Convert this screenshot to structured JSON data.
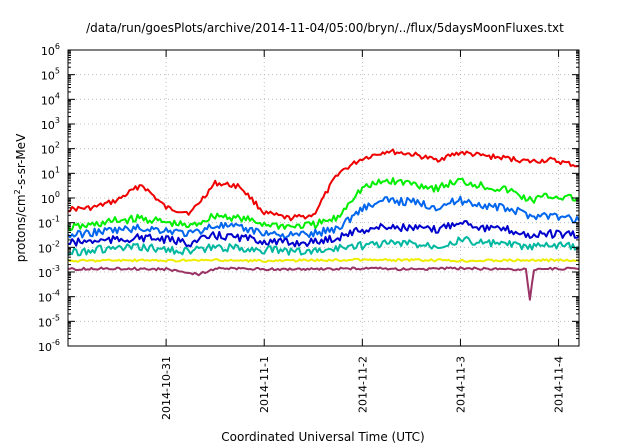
{
  "chart_data": {
    "type": "line",
    "title": "/data/run/goesPlots/archive/2014-11-04/05:00/bryn/../flux/5daysMoonFluxes.txt",
    "xlabel": "Coordinated Universal Time (UTC)",
    "ylabel": "protons/cm²-s-sr-MeV",
    "ylabel_parts": {
      "base": "protons/cm",
      "sup": "2",
      "rest": "-s-sr-MeV"
    },
    "xscale": "time",
    "yscale": "log",
    "xlim": [
      "2014-10-30T00:00",
      "2014-11-04T05:00"
    ],
    "ylim": [
      1e-06,
      1000000.0
    ],
    "grid": true,
    "legend": "none",
    "x_ticks": [
      "2014-10-31",
      "2014-11-1",
      "2014-11-2",
      "2014-11-3",
      "2014-11-4"
    ],
    "y_ticks": [
      {
        "base": "10",
        "exp": "-6"
      },
      {
        "base": "10",
        "exp": "-5"
      },
      {
        "base": "10",
        "exp": "-4"
      },
      {
        "base": "10",
        "exp": "-3"
      },
      {
        "base": "10",
        "exp": "-2"
      },
      {
        "base": "10",
        "exp": "-1"
      },
      {
        "base": "10",
        "exp": "0"
      },
      {
        "base": "10",
        "exp": "1"
      },
      {
        "base": "10",
        "exp": "2"
      },
      {
        "base": "10",
        "exp": "3"
      },
      {
        "base": "10",
        "exp": "4"
      },
      {
        "base": "10",
        "exp": "5"
      },
      {
        "base": "10",
        "exp": "6"
      }
    ],
    "series": [
      {
        "color": "#ee0000",
        "x": [
          "2014-10-30T00:00",
          "2014-10-30T06:00",
          "2014-10-30T12:00",
          "2014-10-30T18:00",
          "2014-10-31T00:00",
          "2014-10-31T06:00",
          "2014-10-31T12:00",
          "2014-10-31T18:00",
          "2014-11-01T00:00",
          "2014-11-01T06:00",
          "2014-11-01T12:00",
          "2014-11-01T18:00",
          "2014-11-01T21:00",
          "2014-11-02T00:00",
          "2014-11-02T06:00",
          "2014-11-02T12:00",
          "2014-11-02T18:00",
          "2014-11-03T00:00",
          "2014-11-03T06:00",
          "2014-11-03T12:00",
          "2014-11-03T17:00",
          "2014-11-03T22:00",
          "2014-11-04T05:00"
        ],
        "y": [
          0.35,
          0.4,
          0.8,
          3.5,
          0.4,
          0.25,
          4.0,
          3.0,
          0.25,
          0.15,
          0.2,
          10,
          20,
          40,
          80,
          60,
          35,
          70,
          50,
          40,
          30,
          35,
          20
        ]
      },
      {
        "color": "#00ee00",
        "x": [
          "2014-10-30T00:00",
          "2014-10-30T06:00",
          "2014-10-30T12:00",
          "2014-10-30T18:00",
          "2014-10-31T00:00",
          "2014-10-31T06:00",
          "2014-10-31T12:00",
          "2014-10-31T18:00",
          "2014-11-01T00:00",
          "2014-11-01T06:00",
          "2014-11-01T12:00",
          "2014-11-01T18:00",
          "2014-11-01T21:00",
          "2014-11-02T00:00",
          "2014-11-02T06:00",
          "2014-11-02T12:00",
          "2014-11-02T18:00",
          "2014-11-03T00:00",
          "2014-11-03T06:00",
          "2014-11-03T12:00",
          "2014-11-03T17:00",
          "2014-11-03T22:00",
          "2014-11-04T05:00"
        ],
        "y": [
          0.06,
          0.08,
          0.12,
          0.15,
          0.1,
          0.07,
          0.2,
          0.15,
          0.09,
          0.07,
          0.08,
          0.15,
          0.8,
          2.5,
          5,
          4,
          2.5,
          5,
          3,
          2,
          0.8,
          1.2,
          0.9
        ]
      },
      {
        "color": "#0066ee",
        "x": [
          "2014-10-30T00:00",
          "2014-10-30T06:00",
          "2014-10-30T12:00",
          "2014-10-30T18:00",
          "2014-10-31T00:00",
          "2014-10-31T06:00",
          "2014-10-31T12:00",
          "2014-10-31T18:00",
          "2014-11-01T00:00",
          "2014-11-01T06:00",
          "2014-11-01T12:00",
          "2014-11-01T18:00",
          "2014-11-01T21:00",
          "2014-11-02T00:00",
          "2014-11-02T06:00",
          "2014-11-02T12:00",
          "2014-11-02T18:00",
          "2014-11-03T00:00",
          "2014-11-03T06:00",
          "2014-11-03T12:00",
          "2014-11-03T17:00",
          "2014-11-03T22:00",
          "2014-11-04T05:00"
        ],
        "y": [
          0.03,
          0.04,
          0.05,
          0.06,
          0.05,
          0.035,
          0.08,
          0.06,
          0.04,
          0.03,
          0.035,
          0.06,
          0.15,
          0.4,
          0.8,
          0.7,
          0.45,
          0.8,
          0.5,
          0.35,
          0.2,
          0.2,
          0.12
        ]
      },
      {
        "color": "#0000cc",
        "x": [
          "2014-10-30T00:00",
          "2014-10-30T06:00",
          "2014-10-30T12:00",
          "2014-10-30T18:00",
          "2014-10-31T00:00",
          "2014-10-31T06:00",
          "2014-10-31T12:00",
          "2014-10-31T18:00",
          "2014-11-01T00:00",
          "2014-11-01T06:00",
          "2014-11-01T12:00",
          "2014-11-01T18:00",
          "2014-11-01T21:00",
          "2014-11-02T00:00",
          "2014-11-02T06:00",
          "2014-11-02T12:00",
          "2014-11-02T18:00",
          "2014-11-03T00:00",
          "2014-11-03T06:00",
          "2014-11-03T12:00",
          "2014-11-03T17:00",
          "2014-11-03T22:00",
          "2014-11-04T05:00"
        ],
        "y": [
          0.015,
          0.018,
          0.02,
          0.025,
          0.02,
          0.015,
          0.03,
          0.025,
          0.018,
          0.015,
          0.016,
          0.025,
          0.04,
          0.05,
          0.07,
          0.06,
          0.05,
          0.12,
          0.06,
          0.05,
          0.03,
          0.035,
          0.03
        ]
      },
      {
        "color": "#00b8a0",
        "x": [
          "2014-10-30T00:00",
          "2014-10-30T06:00",
          "2014-10-30T12:00",
          "2014-10-30T18:00",
          "2014-10-31T00:00",
          "2014-10-31T06:00",
          "2014-10-31T12:00",
          "2014-10-31T18:00",
          "2014-11-01T00:00",
          "2014-11-01T06:00",
          "2014-11-01T12:00",
          "2014-11-01T18:00",
          "2014-11-01T21:00",
          "2014-11-02T00:00",
          "2014-11-02T06:00",
          "2014-11-02T12:00",
          "2014-11-02T18:00",
          "2014-11-03T00:00",
          "2014-11-03T06:00",
          "2014-11-03T12:00",
          "2014-11-03T17:00",
          "2014-11-03T22:00",
          "2014-11-04T05:00"
        ],
        "y": [
          0.006,
          0.008,
          0.009,
          0.01,
          0.008,
          0.007,
          0.01,
          0.009,
          0.008,
          0.007,
          0.007,
          0.009,
          0.012,
          0.012,
          0.015,
          0.014,
          0.012,
          0.02,
          0.015,
          0.013,
          0.01,
          0.012,
          0.01
        ]
      },
      {
        "color": "#eeee00",
        "x": [
          "2014-10-30T00:00",
          "2014-10-30T12:00",
          "2014-10-31T00:00",
          "2014-10-31T12:00",
          "2014-11-01T00:00",
          "2014-11-01T12:00",
          "2014-11-02T00:00",
          "2014-11-02T12:00",
          "2014-11-03T00:00",
          "2014-11-03T12:00",
          "2014-11-04T00:00",
          "2014-11-04T05:00"
        ],
        "y": [
          0.0028,
          0.003,
          0.0029,
          0.003,
          0.0028,
          0.003,
          0.0031,
          0.003,
          0.0029,
          0.003,
          0.003,
          0.0028
        ]
      },
      {
        "color": "#993366",
        "x": [
          "2014-10-30T00:00",
          "2014-10-30T12:00",
          "2014-10-31T00:00",
          "2014-10-31T08:00",
          "2014-10-31T12:00",
          "2014-11-01T00:00",
          "2014-11-01T12:00",
          "2014-11-02T00:00",
          "2014-11-02T12:00",
          "2014-11-03T00:00",
          "2014-11-03T12:00",
          "2014-11-03T16:00",
          "2014-11-03T17:00",
          "2014-11-03T18:00",
          "2014-11-04T00:00",
          "2014-11-04T05:00"
        ],
        "y": [
          0.0013,
          0.0014,
          0.0013,
          0.0008,
          0.0014,
          0.0013,
          0.0013,
          0.0014,
          0.0013,
          0.0014,
          0.0013,
          0.0013,
          8e-05,
          0.0013,
          0.0014,
          0.0013
        ]
      }
    ]
  }
}
